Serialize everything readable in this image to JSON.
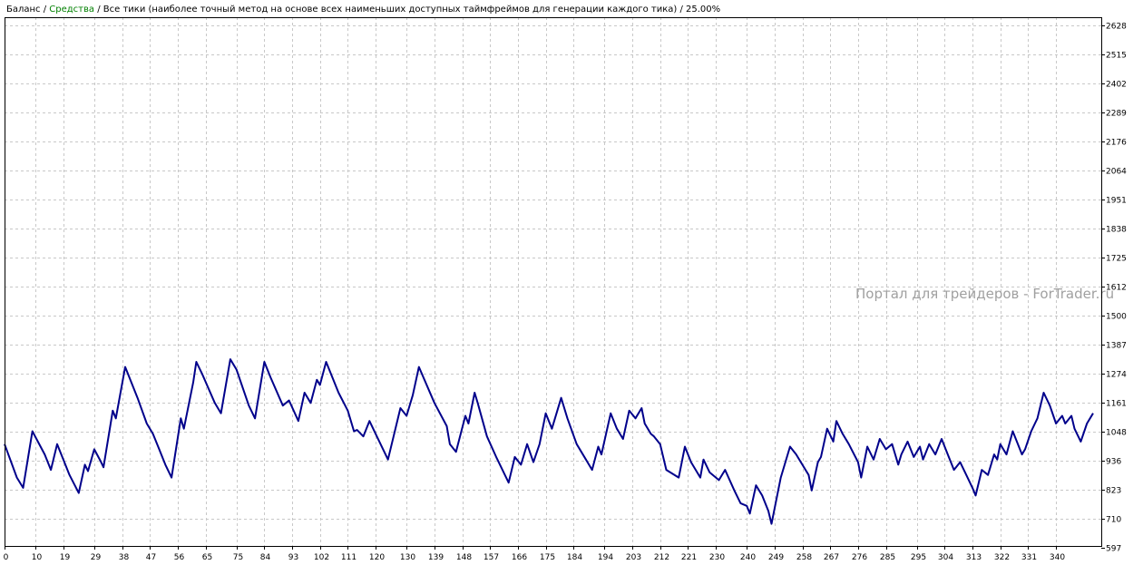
{
  "header": {
    "balance_label": "Баланс",
    "equity_label": "Средства",
    "separator": " / ",
    "model_text": "Все тики (наиболее точный метод на основе всех наименьших доступных таймфреймов для генерации каждого тика)",
    "quality_text": "25.00%"
  },
  "watermark": "Портал для трейдеров - ForTrader.ru",
  "colors": {
    "line": "#00008b",
    "grid": "#c8c8c8",
    "equity_label": "#008000",
    "axis": "#000000",
    "watermark": "#a0a0a0"
  },
  "chart_data": {
    "type": "line",
    "title": "",
    "xlabel": "",
    "ylabel": "",
    "grid": true,
    "xlim": [
      0,
      352
    ],
    "ylim": [
      597,
      2628
    ],
    "x_ticks": [
      0,
      10,
      19,
      29,
      38,
      47,
      56,
      65,
      75,
      84,
      93,
      102,
      111,
      120,
      130,
      139,
      148,
      157,
      166,
      175,
      184,
      194,
      203,
      212,
      221,
      230,
      240,
      249,
      258,
      267,
      276,
      285,
      295,
      304,
      313,
      322,
      331,
      340
    ],
    "y_ticks": [
      597,
      710,
      823,
      936,
      1048,
      1161,
      1274,
      1387,
      1500,
      1612,
      1725,
      1838,
      1951,
      2064,
      2176,
      2289,
      2402,
      2515,
      2628
    ],
    "series": [
      {
        "points": [
          [
            0,
            1000
          ],
          [
            4,
            870
          ],
          [
            6,
            830
          ],
          [
            9,
            1050
          ],
          [
            13,
            960
          ],
          [
            15,
            900
          ],
          [
            17,
            1000
          ],
          [
            21,
            880
          ],
          [
            24,
            810
          ],
          [
            26,
            920
          ],
          [
            27,
            895
          ],
          [
            29,
            980
          ],
          [
            31,
            935
          ],
          [
            32,
            910
          ],
          [
            35,
            1130
          ],
          [
            36,
            1100
          ],
          [
            39,
            1300
          ],
          [
            40,
            1270
          ],
          [
            43,
            1180
          ],
          [
            46,
            1080
          ],
          [
            48,
            1040
          ],
          [
            50,
            980
          ],
          [
            52,
            920
          ],
          [
            54,
            870
          ],
          [
            57,
            1100
          ],
          [
            58,
            1060
          ],
          [
            61,
            1240
          ],
          [
            62,
            1320
          ],
          [
            64,
            1270
          ],
          [
            68,
            1160
          ],
          [
            70,
            1120
          ],
          [
            73,
            1330
          ],
          [
            75,
            1290
          ],
          [
            79,
            1150
          ],
          [
            81,
            1100
          ],
          [
            84,
            1320
          ],
          [
            86,
            1260
          ],
          [
            90,
            1150
          ],
          [
            92,
            1170
          ],
          [
            95,
            1090
          ],
          [
            97,
            1200
          ],
          [
            99,
            1160
          ],
          [
            101,
            1250
          ],
          [
            102,
            1230
          ],
          [
            104,
            1320
          ],
          [
            108,
            1200
          ],
          [
            111,
            1130
          ],
          [
            113,
            1050
          ],
          [
            114,
            1055
          ],
          [
            116,
            1030
          ],
          [
            118,
            1090
          ],
          [
            120,
            1040
          ],
          [
            124,
            940
          ],
          [
            128,
            1140
          ],
          [
            130,
            1110
          ],
          [
            132,
            1190
          ],
          [
            134,
            1300
          ],
          [
            139,
            1160
          ],
          [
            143,
            1070
          ],
          [
            144,
            1000
          ],
          [
            146,
            970
          ],
          [
            149,
            1110
          ],
          [
            150,
            1080
          ],
          [
            152,
            1200
          ],
          [
            153,
            1160
          ],
          [
            156,
            1030
          ],
          [
            159,
            950
          ],
          [
            163,
            850
          ],
          [
            165,
            950
          ],
          [
            167,
            920
          ],
          [
            169,
            1000
          ],
          [
            171,
            930
          ],
          [
            173,
            1000
          ],
          [
            175,
            1120
          ],
          [
            177,
            1060
          ],
          [
            180,
            1180
          ],
          [
            182,
            1100
          ],
          [
            185,
            1000
          ],
          [
            188,
            940
          ],
          [
            190,
            900
          ],
          [
            192,
            990
          ],
          [
            193,
            960
          ],
          [
            196,
            1120
          ],
          [
            198,
            1060
          ],
          [
            200,
            1020
          ],
          [
            202,
            1130
          ],
          [
            204,
            1100
          ],
          [
            206,
            1140
          ],
          [
            207,
            1080
          ],
          [
            209,
            1040
          ],
          [
            210,
            1030
          ],
          [
            212,
            1000
          ],
          [
            214,
            900
          ],
          [
            218,
            870
          ],
          [
            220,
            990
          ],
          [
            222,
            930
          ],
          [
            225,
            870
          ],
          [
            226,
            940
          ],
          [
            228,
            890
          ],
          [
            231,
            860
          ],
          [
            233,
            900
          ],
          [
            236,
            820
          ],
          [
            238,
            770
          ],
          [
            240,
            760
          ],
          [
            241,
            730
          ],
          [
            243,
            840
          ],
          [
            245,
            800
          ],
          [
            247,
            740
          ],
          [
            248,
            690
          ],
          [
            251,
            870
          ],
          [
            254,
            990
          ],
          [
            256,
            960
          ],
          [
            258,
            920
          ],
          [
            260,
            880
          ],
          [
            261,
            820
          ],
          [
            263,
            930
          ],
          [
            264,
            950
          ],
          [
            266,
            1060
          ],
          [
            268,
            1010
          ],
          [
            269,
            1090
          ],
          [
            271,
            1040
          ],
          [
            273,
            1000
          ],
          [
            276,
            930
          ],
          [
            277,
            870
          ],
          [
            279,
            990
          ],
          [
            281,
            940
          ],
          [
            283,
            1020
          ],
          [
            285,
            980
          ],
          [
            287,
            1000
          ],
          [
            289,
            920
          ],
          [
            290,
            960
          ],
          [
            292,
            1010
          ],
          [
            294,
            950
          ],
          [
            296,
            990
          ],
          [
            297,
            940
          ],
          [
            299,
            1000
          ],
          [
            301,
            960
          ],
          [
            303,
            1020
          ],
          [
            305,
            960
          ],
          [
            307,
            900
          ],
          [
            309,
            930
          ],
          [
            311,
            880
          ],
          [
            313,
            830
          ],
          [
            314,
            800
          ],
          [
            316,
            900
          ],
          [
            318,
            880
          ],
          [
            320,
            960
          ],
          [
            321,
            940
          ],
          [
            322,
            1000
          ],
          [
            324,
            960
          ],
          [
            326,
            1050
          ],
          [
            327,
            1020
          ],
          [
            329,
            960
          ],
          [
            330,
            980
          ],
          [
            332,
            1050
          ],
          [
            334,
            1100
          ],
          [
            336,
            1200
          ],
          [
            338,
            1150
          ],
          [
            340,
            1080
          ],
          [
            342,
            1110
          ],
          [
            343,
            1080
          ],
          [
            345,
            1110
          ],
          [
            346,
            1060
          ],
          [
            348,
            1010
          ],
          [
            350,
            1080
          ],
          [
            352,
            1120
          ]
        ]
      }
    ]
  }
}
